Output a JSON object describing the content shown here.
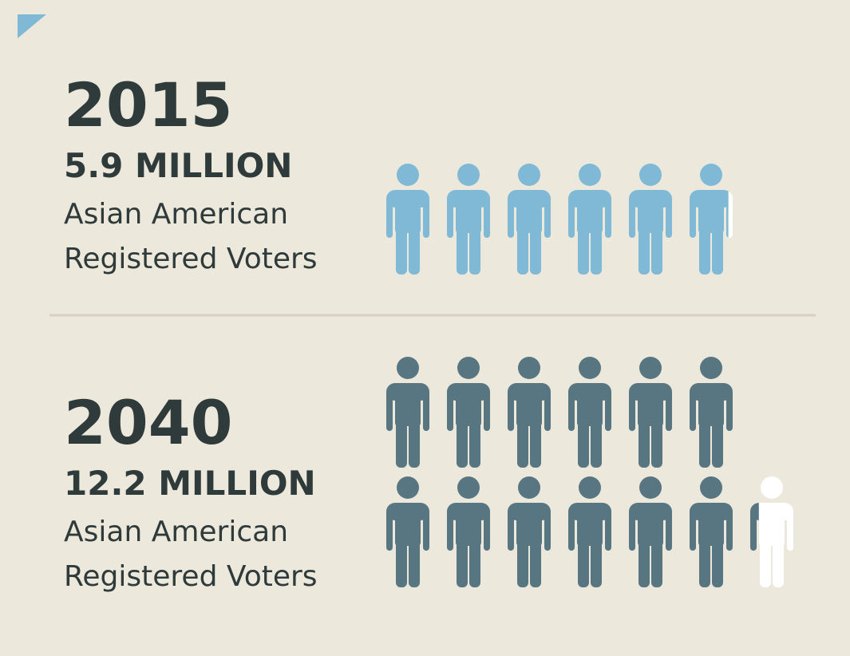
{
  "chart_data": {
    "type": "pictogram",
    "categories": [
      "2015",
      "2040"
    ],
    "values": [
      5.9,
      12.2
    ],
    "value_labels": [
      "5.9 MILLION",
      "12.2 MILLION"
    ],
    "descriptions": [
      [
        "Asian American",
        "Registered Voters"
      ],
      [
        "Asian American",
        "Registered Voters"
      ]
    ],
    "colors": [
      "#80b9d5",
      "#587682"
    ]
  }
}
